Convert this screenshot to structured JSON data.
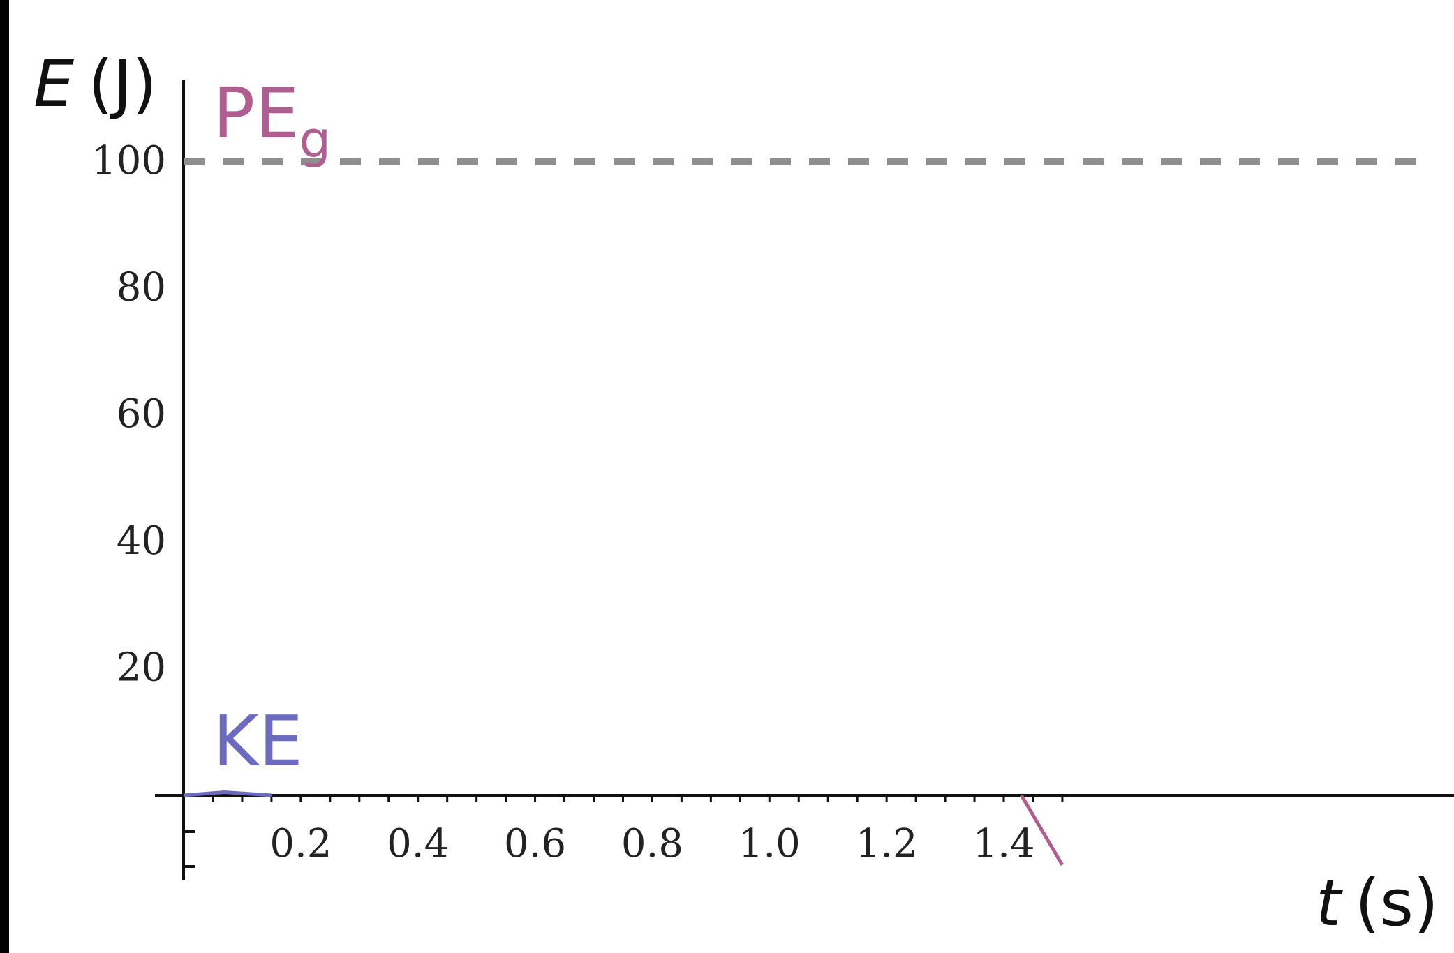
{
  "chart_data": {
    "type": "line",
    "title": "",
    "y_axis": {
      "symbol": "E",
      "unit": "(J)",
      "range": [
        0,
        100
      ],
      "ticks": [
        "100",
        "80",
        "60",
        "40",
        "20"
      ]
    },
    "x_axis": {
      "symbol": "t",
      "unit": "(s)",
      "range": [
        0,
        1.5
      ],
      "ticks": [
        "0.2",
        "0.4",
        "0.6",
        "0.8",
        "1.0",
        "1.2",
        "1.4"
      ]
    },
    "reference_line": {
      "y": 100,
      "style": "dashed",
      "color": "#8f8f8f"
    },
    "series": [
      {
        "name": "PE",
        "subscript": "g",
        "color": "#b05e8f",
        "points": [
          {
            "x": 1.43,
            "y": 0
          },
          {
            "x": 1.5,
            "y": -11
          }
        ]
      },
      {
        "name": "KE",
        "color": "#6a6bbf",
        "points": [
          {
            "x": 0.0,
            "y": 0
          },
          {
            "x": 0.07,
            "y": 0.5
          },
          {
            "x": 0.15,
            "y": 0
          }
        ]
      }
    ],
    "grid": false,
    "legend": "inline labels"
  }
}
